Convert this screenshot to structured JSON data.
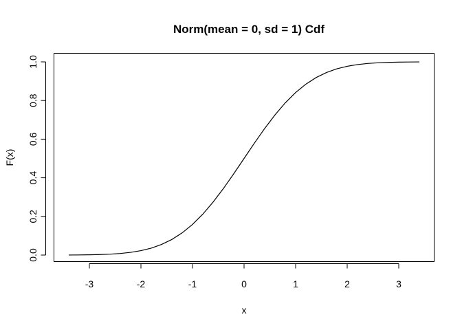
{
  "chart_data": {
    "type": "line",
    "title": "Norm(mean = 0, sd = 1) Cdf",
    "xlabel": "x",
    "ylabel": "F(x)",
    "xlim": [
      -3.4,
      3.4
    ],
    "ylim": [
      0,
      1
    ],
    "x_ticks": [
      -3,
      -2,
      -1,
      0,
      1,
      2,
      3
    ],
    "x_tick_labels": [
      "-3",
      "-2",
      "-1",
      "0",
      "1",
      "2",
      "3"
    ],
    "y_ticks": [
      0,
      0.2,
      0.4,
      0.6,
      0.8,
      1.0
    ],
    "y_tick_labels": [
      "0.0",
      "0.2",
      "0.4",
      "0.6",
      "0.8",
      "1.0"
    ],
    "grid": false,
    "line_color": "#000000",
    "series": [
      {
        "x": [
          -3.4,
          -3.2,
          -3.0,
          -2.8,
          -2.6,
          -2.4,
          -2.2,
          -2.0,
          -1.8,
          -1.6,
          -1.4,
          -1.2,
          -1.0,
          -0.8,
          -0.6,
          -0.4,
          -0.2,
          0.0,
          0.2,
          0.4,
          0.6,
          0.8,
          1.0,
          1.2,
          1.4,
          1.6,
          1.8,
          2.0,
          2.2,
          2.4,
          2.6,
          2.8,
          3.0,
          3.2,
          3.4
        ],
        "values": [
          0.0003,
          0.0007,
          0.0013,
          0.0026,
          0.0047,
          0.0082,
          0.0139,
          0.0228,
          0.0359,
          0.0548,
          0.0808,
          0.1151,
          0.1587,
          0.2119,
          0.2743,
          0.3446,
          0.4207,
          0.5,
          0.5793,
          0.6554,
          0.7257,
          0.7881,
          0.8413,
          0.8849,
          0.9192,
          0.9452,
          0.9641,
          0.9772,
          0.9861,
          0.9918,
          0.9953,
          0.9974,
          0.9987,
          0.9993,
          0.9997
        ]
      }
    ]
  }
}
